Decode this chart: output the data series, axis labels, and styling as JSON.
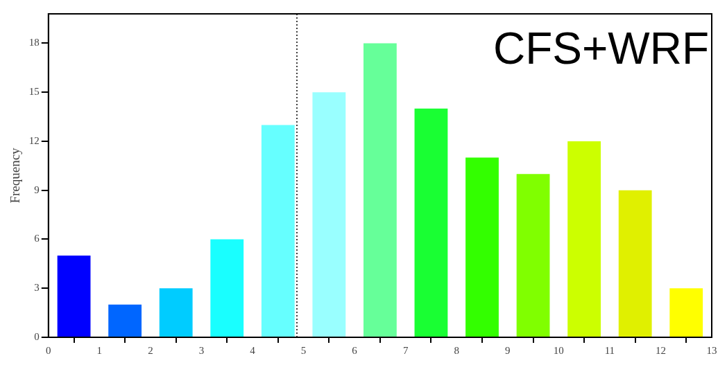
{
  "chart_data": {
    "type": "histogram",
    "title": "CFS+WRF",
    "ylabel": "Frequency",
    "bins": [
      0,
      1,
      2,
      3,
      4,
      5,
      6,
      7,
      8,
      9,
      10,
      11,
      12,
      13
    ],
    "values": [
      5,
      2,
      3,
      6,
      13,
      15,
      18,
      14,
      11,
      10,
      12,
      9,
      3
    ],
    "colors": [
      "#0000ff",
      "#0066ff",
      "#00ccff",
      "#19ffff",
      "#66ffff",
      "#99ffff",
      "#66ff99",
      "#19ff33",
      "#33ff00",
      "#80ff00",
      "#ccff00",
      "#e0f000",
      "#ffff00"
    ],
    "xlim": [
      0,
      13
    ],
    "xticks": [
      0,
      1,
      2,
      3,
      4,
      5,
      6,
      7,
      8,
      9,
      10,
      11,
      12,
      13
    ],
    "ylim": [
      0,
      19.8
    ],
    "yticks": [
      0,
      3,
      6,
      9,
      12,
      15,
      18
    ],
    "ref_lines": [
      {
        "axis": "x",
        "value": 4.87,
        "color": "#000000",
        "line_style": "dotted"
      }
    ],
    "grid": false,
    "legend": false
  }
}
